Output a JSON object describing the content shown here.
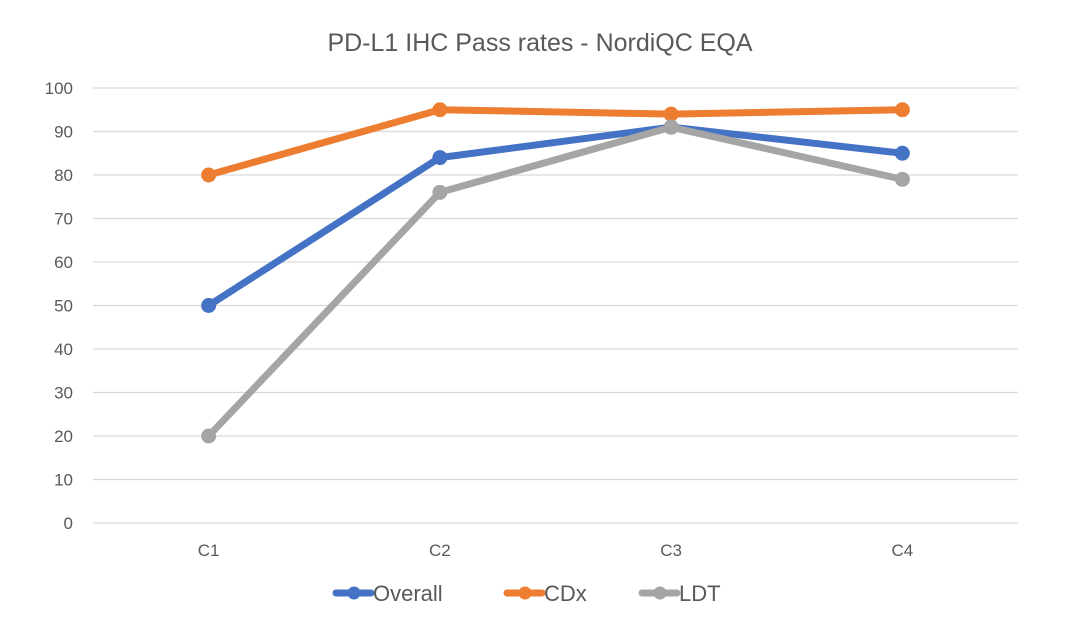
{
  "chart_data": {
    "type": "line",
    "title": "PD-L1 IHC Pass rates - NordiQC EQA",
    "xlabel": "",
    "ylabel": "",
    "categories": [
      "C1",
      "C2",
      "C3",
      "C4"
    ],
    "ylim": [
      0,
      100
    ],
    "yticks": [
      0,
      10,
      20,
      30,
      40,
      50,
      60,
      70,
      80,
      90,
      100
    ],
    "grid": true,
    "legend_position": "bottom",
    "series": [
      {
        "name": "Overall",
        "color": "#4472c4",
        "values": [
          50,
          84,
          91,
          85
        ]
      },
      {
        "name": "CDx",
        "color": "#ed7d31",
        "values": [
          80,
          95,
          94,
          95
        ]
      },
      {
        "name": "LDT",
        "color": "#a5a5a5",
        "values": [
          20,
          76,
          91,
          79
        ]
      }
    ]
  }
}
